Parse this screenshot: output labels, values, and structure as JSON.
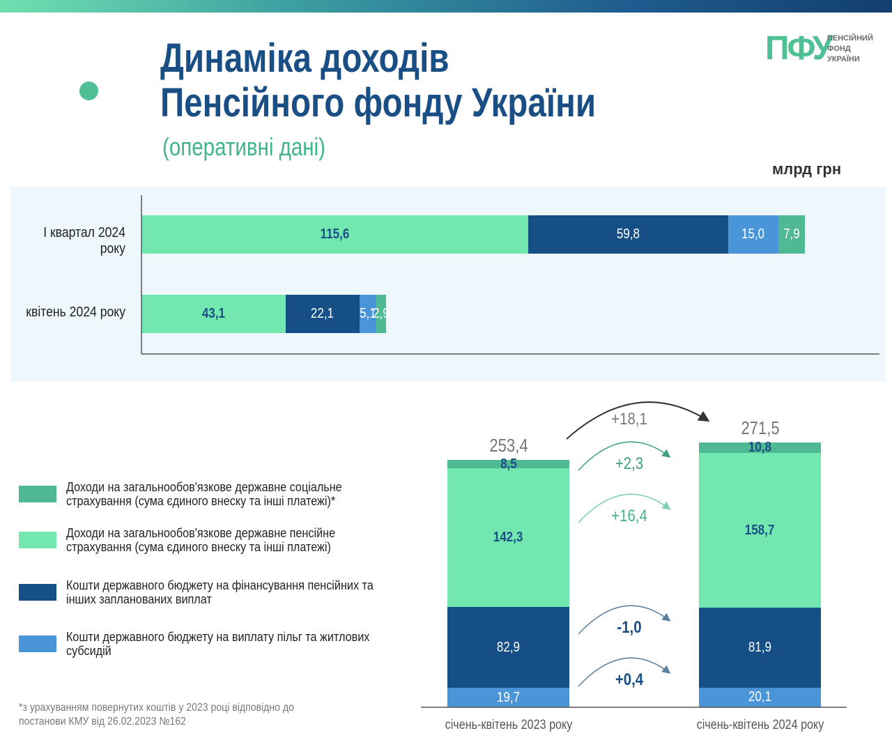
{
  "header": {
    "title_line1": "Динаміка доходів",
    "title_line2": "Пенсійного фонду України",
    "subtitle": "(оперативні дані)",
    "unit": "млрд грн"
  },
  "logo": {
    "mark": "ПФУ",
    "text_lines": [
      "ПЕНСІЙНИЙ",
      "ФОНД",
      "УКРАЇНИ"
    ]
  },
  "colors": {
    "social": "#4fb994",
    "pension": "#72e8b0",
    "budget": "#154f85",
    "benefits": "#4a94d8"
  },
  "legend": [
    {
      "key": "social",
      "label": "Доходи на загальнообов'язкове державне соціальне страхування (сума єдиного внеску та інші платежі)*"
    },
    {
      "key": "pension",
      "label": "Доходи на загальнообов'язкове державне пенсійне страхування (сума єдиного внеску та інші платежі)"
    },
    {
      "key": "budget",
      "label": "Кошти державного бюджету на фінансування пенсійних та інших запланованих виплат"
    },
    {
      "key": "benefits",
      "label": "Кошти державного бюджету на виплату пільг та житлових субсидій"
    }
  ],
  "footnote": "*з урахуванням повернутих коштів у 2023 році відповідно до постанови КМУ від 26.02.2023 №162",
  "chart_data": [
    {
      "type": "bar",
      "orientation": "horizontal",
      "stacked": true,
      "categories": [
        "І квартал 2024 року",
        "квітень 2024 року"
      ],
      "series": [
        {
          "key": "pension",
          "values": [
            115.6,
            43.1
          ],
          "labels": [
            "115,6",
            "43,1"
          ]
        },
        {
          "key": "budget",
          "values": [
            59.8,
            22.1
          ],
          "labels": [
            "59,8",
            "22,1"
          ]
        },
        {
          "key": "benefits",
          "values": [
            15.0,
            5.1
          ],
          "labels": [
            "15,0",
            "5,1"
          ]
        },
        {
          "key": "social",
          "values": [
            7.9,
            2.9
          ],
          "labels": [
            "7,9",
            "2,9"
          ]
        }
      ]
    },
    {
      "type": "bar",
      "orientation": "vertical",
      "stacked": true,
      "categories": [
        "січень-квітень 2023 року",
        "січень-квітень 2024 року"
      ],
      "totals": [
        "253,4",
        "271,5"
      ],
      "series": [
        {
          "key": "benefits",
          "values": [
            19.7,
            20.1
          ],
          "labels": [
            "19,7",
            "20,1"
          ],
          "change": "+0,4"
        },
        {
          "key": "budget",
          "values": [
            82.9,
            81.9
          ],
          "labels": [
            "82,9",
            "81,9"
          ],
          "change": "-1,0"
        },
        {
          "key": "pension",
          "values": [
            142.3,
            158.7
          ],
          "labels": [
            "142,3",
            "158,7"
          ],
          "change": "+16,4"
        },
        {
          "key": "social",
          "values": [
            8.5,
            10.8
          ],
          "labels": [
            "8,5",
            "10,8"
          ],
          "change": "+2,3"
        }
      ],
      "total_change": "+18,1"
    }
  ]
}
